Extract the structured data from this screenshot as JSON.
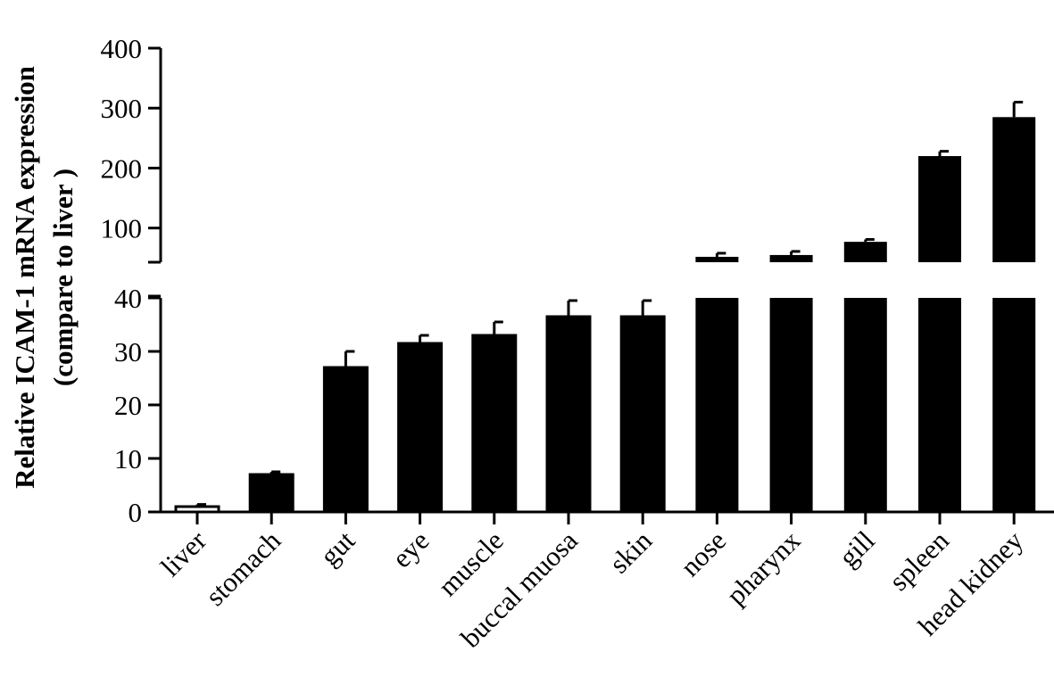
{
  "chart_data": {
    "type": "bar",
    "title": "",
    "ylabel_lines": [
      "Relative ICAM-1 mRNA expression",
      "(compare to  liver )"
    ],
    "xlabel": "",
    "categories": [
      "liver",
      "stomach",
      "gut",
      "eye",
      "muscle",
      "buccal muosa",
      "skin",
      "nose",
      "pharynx",
      "gill",
      "spleen",
      "head kidney"
    ],
    "values": [
      1,
      7,
      27,
      31.5,
      33,
      36.5,
      36.5,
      52,
      55,
      77,
      220,
      285
    ],
    "errors": [
      0.4,
      0.5,
      3,
      1.5,
      2.5,
      3,
      3,
      6,
      6,
      4,
      8,
      25
    ],
    "fill_colors": [
      "#ffffff",
      "#000000",
      "#000000",
      "#000000",
      "#000000",
      "#000000",
      "#000000",
      "#000000",
      "#000000",
      "#000000",
      "#000000",
      "#000000"
    ],
    "axis_break": true,
    "lower_segment": {
      "ylim": [
        0,
        40
      ],
      "ticks": [
        "0",
        "10",
        "20",
        "30",
        "40"
      ],
      "tick_values": [
        0,
        10,
        20,
        30,
        40
      ]
    },
    "upper_segment": {
      "ylim": [
        43,
        400
      ],
      "ticks": [
        "100",
        "200",
        "300",
        "400"
      ],
      "tick_values": [
        100,
        200,
        300,
        400
      ]
    },
    "grid": false,
    "legend": "none"
  }
}
